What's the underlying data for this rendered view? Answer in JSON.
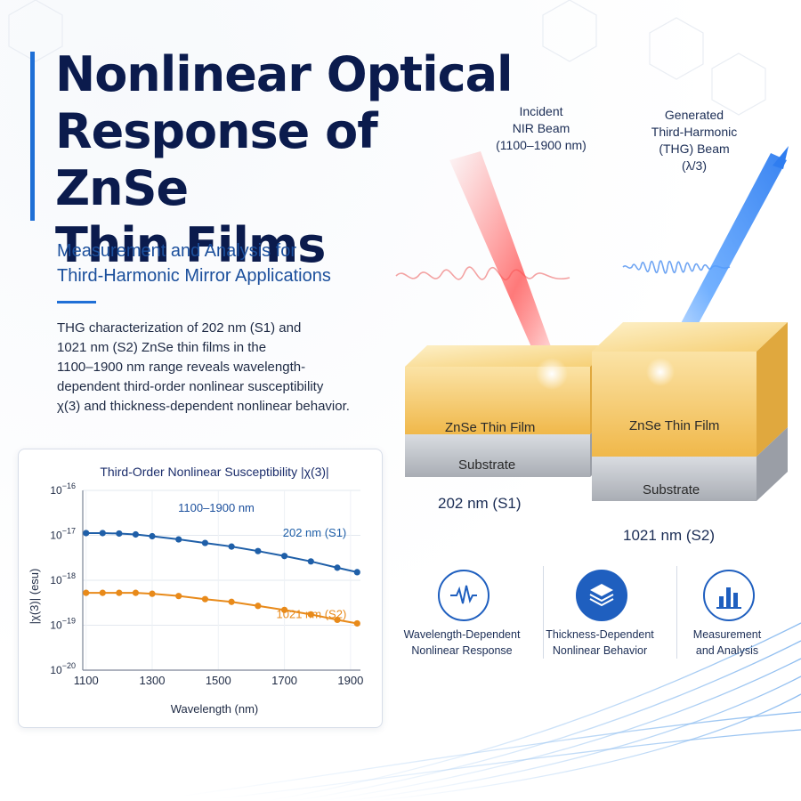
{
  "title_lines": [
    "Nonlinear Optical",
    "Response of ZnSe",
    "Thin Films"
  ],
  "subtitle_lines": [
    "Measurement and Analysis for",
    "Third-Harmonic Mirror Applications"
  ],
  "description_lines": [
    "THG characterization of 202 nm (S1) and",
    "1021 nm (S2) ZnSe thin films in the",
    "1100–1900 nm range reveals wavelength-",
    "dependent third-order nonlinear susceptibility",
    "χ(3) and thickness-dependent nonlinear behavior."
  ],
  "beams": {
    "incident": [
      "Incident",
      "NIR Beam",
      "(1100–1900 nm)"
    ],
    "generated": [
      "Generated",
      "Third-Harmonic",
      "(THG) Beam",
      "(λ/3)"
    ]
  },
  "samples": [
    {
      "film_label": "ZnSe Thin Film",
      "substrate_label": "Substrate",
      "name": "202 nm (S1)"
    },
    {
      "film_label": "ZnSe Thin Film",
      "substrate_label": "Substrate",
      "name": "1021 nm (S2)"
    }
  ],
  "features": [
    {
      "icon": "waveform-icon",
      "lines": [
        "Wavelength-Dependent",
        "Nonlinear Response"
      ]
    },
    {
      "icon": "layers-icon",
      "lines": [
        "Thickness-Dependent",
        "Nonlinear Behavior"
      ]
    },
    {
      "icon": "bar-chart-icon",
      "lines": [
        "Measurement",
        "and Analysis"
      ]
    }
  ],
  "colors": {
    "title": "#0b1b4d",
    "accent": "#1f6fd6",
    "series_s1": "#1f5fa8",
    "series_s2": "#e88a1a",
    "incident_beam": "#ff4d4d",
    "generated_beam": "#3a8cff",
    "film": "#f2c14e",
    "substrate": "#b9bdc4"
  },
  "chart_data": {
    "type": "line",
    "title": "Third-Order Nonlinear Susceptibility |χ(3)|",
    "xlabel": "Wavelength (nm)",
    "ylabel": "|χ(3)| (esu)",
    "xlim": [
      1090,
      1930
    ],
    "ylim_log10": [
      -20,
      -16
    ],
    "y_scale": "log",
    "x_ticks": [
      1100,
      1300,
      1500,
      1700,
      1900
    ],
    "x_tick_labels": [
      "1100",
      "1300",
      "1500",
      "1700",
      "1900"
    ],
    "y_ticks_log10": [
      -16,
      -17,
      -18,
      -19,
      -20
    ],
    "annotation": "1100–1900 nm",
    "series": [
      {
        "name": "202 nm (S1)",
        "x": [
          1100,
          1150,
          1200,
          1250,
          1300,
          1380,
          1460,
          1540,
          1620,
          1700,
          1780,
          1860,
          1920
        ],
        "log10_y": [
          -16.95,
          -16.95,
          -16.96,
          -16.98,
          -17.02,
          -17.09,
          -17.17,
          -17.25,
          -17.35,
          -17.46,
          -17.58,
          -17.72,
          -17.82
        ]
      },
      {
        "name": "1021 nm (S2)",
        "x": [
          1100,
          1150,
          1200,
          1250,
          1300,
          1380,
          1460,
          1540,
          1620,
          1700,
          1780,
          1860,
          1920
        ],
        "log10_y": [
          -18.28,
          -18.28,
          -18.28,
          -18.28,
          -18.3,
          -18.35,
          -18.42,
          -18.48,
          -18.57,
          -18.66,
          -18.76,
          -18.88,
          -18.96
        ]
      }
    ]
  }
}
